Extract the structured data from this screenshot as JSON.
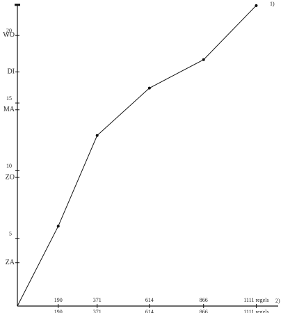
{
  "chart_data": {
    "type": "line",
    "x": [
      0,
      190,
      371,
      614,
      866,
      1111
    ],
    "series": [
      {
        "color": "#111111",
        "values": [
          0,
          5.9,
          12.6,
          16.1,
          18.2,
          22.2
        ]
      }
    ],
    "xlim": [
      0,
      1213
    ],
    "ylim": [
      0,
      22.3
    ],
    "xticks": [
      190,
      371,
      614,
      866,
      {
        "value": 1111,
        "label": "1111 regels"
      }
    ],
    "yticks": [
      5,
      10,
      15,
      20
    ],
    "day_ticks": [
      {
        "value": 3.2,
        "label": "ZA"
      },
      {
        "value": 9.5,
        "label": "ZO"
      },
      {
        "value": 14.5,
        "label": "MA"
      },
      {
        "value": 17.3,
        "label": "DI"
      },
      {
        "value": 20,
        "label": "WO"
      }
    ],
    "y_axis_note": "1)",
    "x_axis_note": "2)"
  }
}
